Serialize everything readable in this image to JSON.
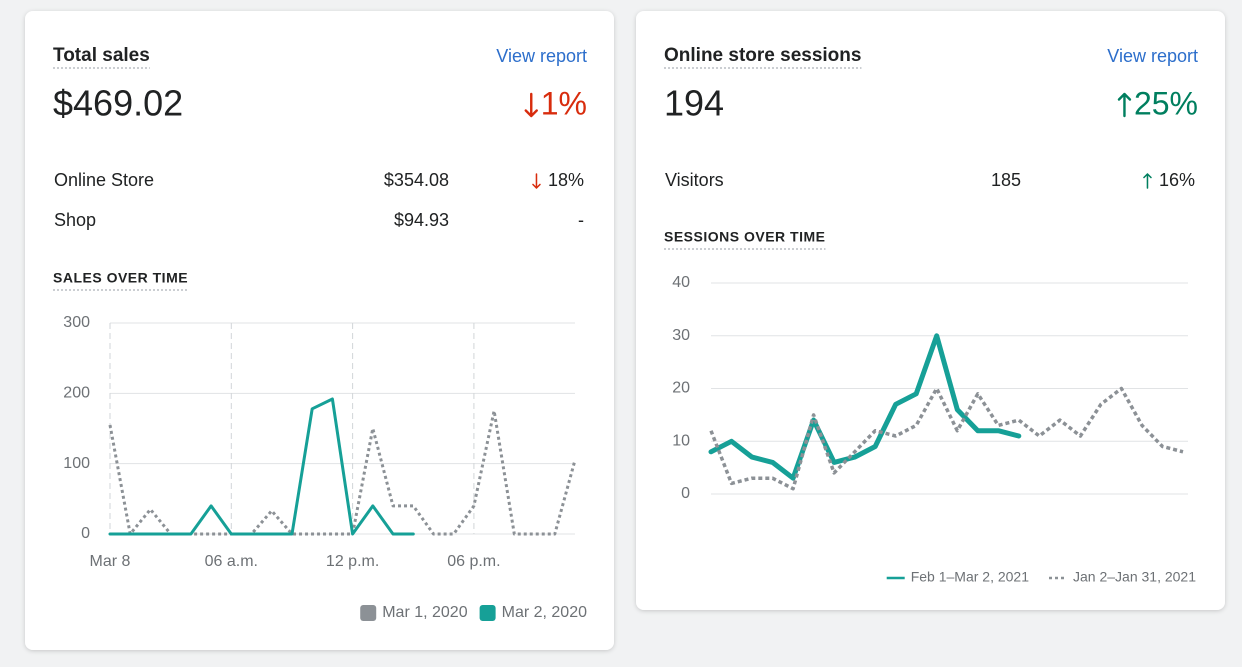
{
  "cards": [
    {
      "title": "Total sales",
      "link": "View report",
      "value": "$469.02",
      "change": "1%",
      "direction": "down",
      "rows": [
        {
          "label": "Online Store",
          "value": "$354.08",
          "change": "18%",
          "direction": "down"
        },
        {
          "label": "Shop",
          "value": "$94.93",
          "change": "-",
          "direction": "none"
        }
      ],
      "chart_heading": "SALES OVER TIME"
    },
    {
      "title": "Online store sessions",
      "link": "View report",
      "value": "194",
      "change": "25%",
      "direction": "up",
      "rows": [
        {
          "label": "Visitors",
          "value": "185",
          "change": "16%",
          "direction": "up"
        }
      ],
      "chart_heading": "SESSIONS OVER TIME"
    }
  ],
  "chart_data": [
    {
      "type": "line",
      "categories": [
        "Mar 8",
        null,
        null,
        null,
        null,
        null,
        "06 a.m.",
        null,
        null,
        null,
        null,
        null,
        "12 p.m.",
        null,
        null,
        null,
        null,
        null,
        "06 p.m.",
        null,
        null,
        null,
        null,
        null
      ],
      "series": [
        {
          "name": "Mar 1, 2020",
          "color": "#8c9196",
          "dash": true,
          "values": [
            155,
            0,
            35,
            0,
            0,
            0,
            0,
            0,
            33,
            0,
            0,
            0,
            0,
            150,
            40,
            40,
            0,
            0,
            40,
            175,
            0,
            0,
            0,
            105
          ]
        },
        {
          "name": "Mar 2, 2020",
          "color": "#16a097",
          "dash": false,
          "values": [
            0,
            0,
            0,
            0,
            0,
            40,
            0,
            0,
            0,
            0,
            178,
            192,
            0,
            40,
            0,
            0,
            null,
            null,
            null,
            null,
            null,
            null,
            null,
            null
          ]
        }
      ],
      "ylim": [
        0,
        300
      ],
      "yticks": [
        0,
        100,
        200,
        300
      ],
      "grid": true,
      "x_grid": true,
      "legend": "bottom-right",
      "legend_marker": "square"
    },
    {
      "type": "line",
      "categories": [
        null,
        null,
        null,
        null,
        null,
        null,
        null,
        null,
        null,
        null,
        null,
        null,
        null,
        null,
        null,
        null,
        null,
        null,
        null,
        null,
        null,
        null,
        null,
        null
      ],
      "series": [
        {
          "name": "Feb 1–Mar 2, 2021",
          "color": "#16a097",
          "dash": false,
          "values": [
            8,
            10,
            7,
            6,
            3,
            14,
            6,
            7,
            9,
            17,
            19,
            30,
            16,
            12,
            12,
            11,
            null,
            null,
            null,
            null,
            null,
            null,
            null,
            null
          ]
        },
        {
          "name": "Jan 2–Jan 31, 2021",
          "color": "#8c9196",
          "dash": true,
          "values": [
            12,
            2,
            3,
            3,
            1,
            15,
            4,
            8,
            12,
            11,
            13,
            20,
            12,
            19,
            13,
            14,
            11,
            14,
            11,
            17,
            20,
            13,
            9,
            8
          ]
        }
      ],
      "ylim": [
        0,
        40
      ],
      "yticks": [
        0,
        10,
        20,
        30,
        40
      ],
      "grid": true,
      "x_grid": false,
      "legend": "bottom-right",
      "legend_marker": "line"
    }
  ]
}
